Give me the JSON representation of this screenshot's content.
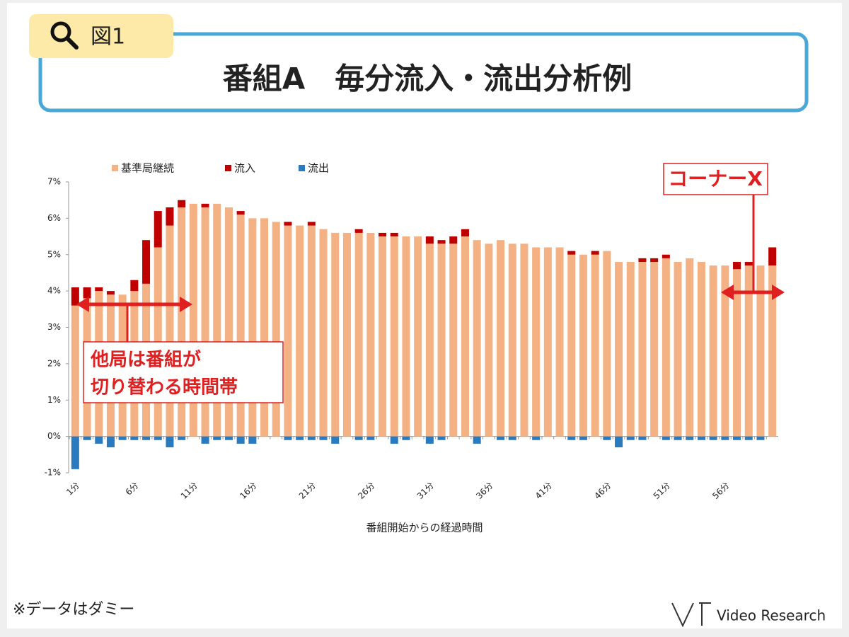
{
  "badge": "図1",
  "title": "番組A　毎分流入・流出分析例",
  "footnote": "※データはダミー",
  "logo": "Video Research",
  "chart_data": {
    "type": "bar",
    "stacked": true,
    "x_label": "番組開始からの経過時間",
    "categories": [
      "1分",
      null,
      null,
      null,
      null,
      "6分",
      null,
      null,
      null,
      null,
      "11分",
      null,
      null,
      null,
      null,
      "16分",
      null,
      null,
      null,
      null,
      "21分",
      null,
      null,
      null,
      null,
      "26分",
      null,
      null,
      null,
      null,
      "31分",
      null,
      null,
      null,
      null,
      "36分",
      null,
      null,
      null,
      null,
      "41分",
      null,
      null,
      null,
      null,
      "46分",
      null,
      null,
      null,
      null,
      "51分",
      null,
      null,
      null,
      null,
      "56分",
      null,
      null,
      null,
      null
    ],
    "series": [
      {
        "name": "基準局継続",
        "color": "#f4b183",
        "values": [
          3.6,
          3.8,
          4.0,
          3.9,
          3.9,
          4.0,
          4.2,
          5.2,
          5.8,
          6.3,
          6.4,
          6.3,
          6.4,
          6.3,
          6.1,
          6.0,
          6.0,
          5.9,
          5.8,
          5.8,
          5.8,
          5.7,
          5.6,
          5.6,
          5.6,
          5.6,
          5.5,
          5.5,
          5.5,
          5.5,
          5.3,
          5.3,
          5.3,
          5.5,
          5.4,
          5.3,
          5.4,
          5.3,
          5.3,
          5.2,
          5.2,
          5.2,
          5.0,
          5.0,
          5.0,
          5.1,
          4.8,
          4.8,
          4.8,
          4.8,
          4.9,
          4.8,
          4.9,
          4.8,
          4.7,
          4.7,
          4.6,
          4.7,
          4.7,
          4.7
        ]
      },
      {
        "name": "流入",
        "color": "#c00000",
        "values": [
          0.5,
          0.3,
          0.1,
          0.1,
          0,
          0.3,
          1.2,
          1.0,
          0.5,
          0.2,
          0,
          0.1,
          0,
          0,
          0.1,
          0,
          0,
          0,
          0.1,
          0,
          0.1,
          0,
          0,
          0,
          0.1,
          0,
          0.1,
          0.1,
          0,
          0,
          0.2,
          0.1,
          0.2,
          0.2,
          0,
          0,
          0,
          0,
          0,
          0,
          0,
          0,
          0.1,
          0,
          0.1,
          0,
          0,
          0,
          0.1,
          0.1,
          0.1,
          0,
          0,
          0,
          0,
          0,
          0.2,
          0.1,
          0,
          0.5
        ]
      },
      {
        "name": "流出",
        "color": "#2a7abf",
        "values": [
          -0.9,
          -0.1,
          -0.2,
          -0.3,
          -0.1,
          -0.1,
          -0.1,
          -0.1,
          -0.3,
          -0.1,
          0,
          -0.2,
          -0.1,
          -0.1,
          -0.2,
          -0.2,
          0,
          0,
          -0.1,
          -0.1,
          -0.1,
          -0.1,
          -0.2,
          0,
          -0.1,
          -0.1,
          0,
          -0.2,
          -0.1,
          0,
          -0.2,
          -0.1,
          0,
          0,
          -0.2,
          0,
          -0.1,
          -0.1,
          0,
          -0.1,
          0,
          0,
          -0.1,
          -0.1,
          0,
          -0.1,
          -0.3,
          -0.1,
          -0.1,
          0,
          -0.1,
          -0.1,
          -0.1,
          -0.1,
          -0.1,
          -0.1,
          -0.1,
          -0.1,
          -0.1,
          0
        ]
      }
    ],
    "ylim": [
      -1,
      7
    ],
    "yticks": [
      {
        "value": -1,
        "label": "-1%"
      },
      {
        "value": 0,
        "label": "0%"
      },
      {
        "value": 1,
        "label": "1%"
      },
      {
        "value": 2,
        "label": "2%"
      },
      {
        "value": 3,
        "label": "3%"
      },
      {
        "value": 4,
        "label": "4%"
      },
      {
        "value": 5,
        "label": "5%"
      },
      {
        "value": 6,
        "label": "6%"
      },
      {
        "value": 7,
        "label": "7%"
      }
    ],
    "legend": "top",
    "annotations": [
      "他局は番組が",
      "切り替わる時間帯",
      "コーナーX"
    ]
  }
}
